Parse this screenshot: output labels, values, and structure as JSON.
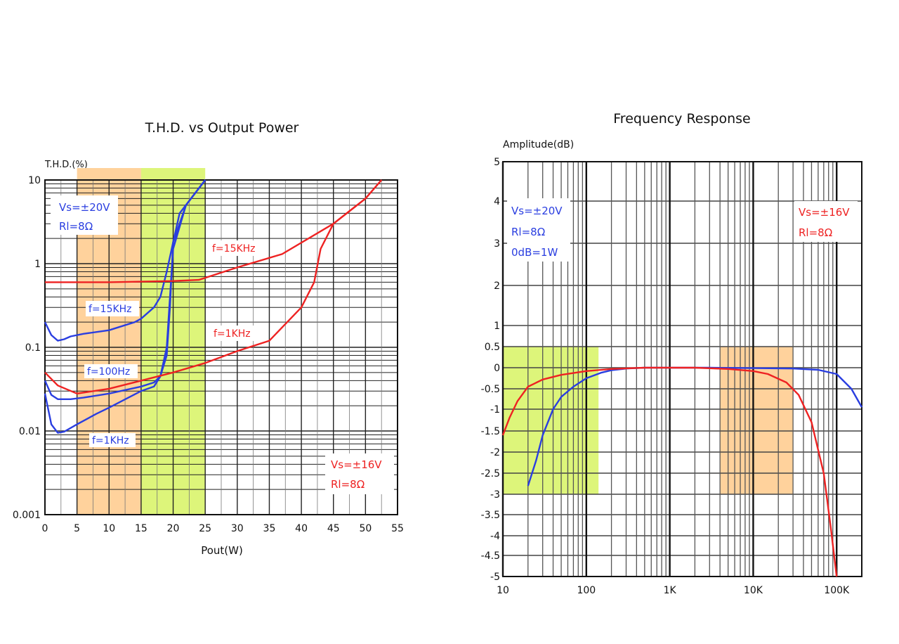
{
  "chart_data": [
    {
      "type": "line",
      "title": "T.H.D. vs Output Power",
      "xlabel": "Pout(W)",
      "ylabel": "T.H.D.(%)",
      "xscale": "linear",
      "yscale": "log",
      "xlim": [
        0,
        55
      ],
      "ylim": [
        0.001,
        10
      ],
      "xticks": [
        0,
        5,
        10,
        15,
        20,
        25,
        30,
        35,
        40,
        45,
        50,
        55
      ],
      "xtick_labels": [
        "0",
        "5",
        "10",
        "15",
        "20",
        "25",
        "30",
        "35",
        "40",
        "45",
        "50",
        "55"
      ],
      "yticks": [
        0.001,
        0.01,
        0.1,
        1,
        10
      ],
      "ytick_labels": [
        "0.001",
        "0.01",
        "0.1",
        "1",
        "10"
      ],
      "grid": true,
      "bands": [
        {
          "x0": 5,
          "x1": 15,
          "color": "#ffd29c"
        },
        {
          "x0": 15,
          "x1": 25,
          "color": "#ddf57a"
        }
      ],
      "series": [
        {
          "name": "f=15KHz",
          "group": "Vs=±20V",
          "color": "#2a3ee0",
          "points": [
            [
              0,
              0.2
            ],
            [
              1,
              0.14
            ],
            [
              2,
              0.12
            ],
            [
              3,
              0.125
            ],
            [
              4,
              0.135
            ],
            [
              6,
              0.145
            ],
            [
              10,
              0.16
            ],
            [
              14,
              0.2
            ],
            [
              15,
              0.22
            ],
            [
              17,
              0.3
            ],
            [
              18,
              0.4
            ],
            [
              19,
              0.8
            ],
            [
              20,
              1.8
            ],
            [
              22,
              5
            ],
            [
              25,
              10
            ]
          ]
        },
        {
          "name": "f=100Hz",
          "group": "Vs=±20V",
          "color": "#2a3ee0",
          "points": [
            [
              0,
              0.04
            ],
            [
              1,
              0.027
            ],
            [
              2,
              0.024
            ],
            [
              4,
              0.024
            ],
            [
              6,
              0.025
            ],
            [
              10,
              0.028
            ],
            [
              15,
              0.034
            ],
            [
              17,
              0.038
            ],
            [
              18,
              0.045
            ],
            [
              19,
              0.08
            ],
            [
              19.5,
              0.3
            ],
            [
              20,
              1.8
            ],
            [
              21,
              4
            ],
            [
              25,
              10
            ]
          ]
        },
        {
          "name": "f=1KHz",
          "group": "Vs=±20V",
          "color": "#2a3ee0",
          "points": [
            [
              0,
              0.028
            ],
            [
              1,
              0.012
            ],
            [
              2,
              0.0095
            ],
            [
              3,
              0.0098
            ],
            [
              5,
              0.012
            ],
            [
              8,
              0.016
            ],
            [
              10,
              0.019
            ],
            [
              15,
              0.03
            ],
            [
              17,
              0.034
            ],
            [
              18,
              0.045
            ],
            [
              19,
              0.1
            ],
            [
              19.5,
              0.4
            ],
            [
              20,
              1.5
            ],
            [
              22,
              5
            ],
            [
              25,
              10
            ]
          ]
        },
        {
          "name": "f=15KHz",
          "group": "Vs=±16V",
          "color": "#ee2222",
          "points": [
            [
              0,
              0.6
            ],
            [
              10,
              0.6
            ],
            [
              20,
              0.62
            ],
            [
              24,
              0.64
            ],
            [
              30,
              0.9
            ],
            [
              37,
              1.3
            ],
            [
              45,
              3
            ],
            [
              50,
              6
            ],
            [
              52.5,
              10
            ]
          ]
        },
        {
          "name": "f=1KHz",
          "group": "Vs=±16V",
          "color": "#ee2222",
          "points": [
            [
              0,
              0.05
            ],
            [
              2,
              0.035
            ],
            [
              5,
              0.028
            ],
            [
              10,
              0.032
            ],
            [
              15,
              0.04
            ],
            [
              20,
              0.05
            ],
            [
              25,
              0.065
            ],
            [
              30,
              0.09
            ],
            [
              35,
              0.12
            ],
            [
              40,
              0.3
            ],
            [
              42,
              0.6
            ],
            [
              43,
              1.5
            ],
            [
              45,
              3
            ],
            [
              50,
              6
            ],
            [
              52.5,
              10
            ]
          ]
        }
      ],
      "annotations": [
        {
          "text": "Vs=±20V",
          "color": "#2a3ee0"
        },
        {
          "text": "Rl=8Ω",
          "color": "#2a3ee0"
        },
        {
          "text": "Vs=±16V",
          "color": "#ee2222"
        },
        {
          "text": "Rl=8Ω",
          "color": "#ee2222"
        }
      ]
    },
    {
      "type": "line",
      "title": "Frequency Response",
      "ylabel": "Amplitude(dB)",
      "xlabel": "",
      "xscale": "log",
      "yscale": "linear",
      "xlim": [
        10,
        200000
      ],
      "ylim": [
        -5,
        5
      ],
      "xticks": [
        10,
        100,
        1000,
        10000,
        100000
      ],
      "xtick_labels": [
        "10",
        "100",
        "1K",
        "10K",
        "100K"
      ],
      "yticks": [
        5,
        4,
        3,
        2,
        1,
        0.5,
        0,
        -0.5,
        -1,
        -1.5,
        -2,
        -2.5,
        -3,
        -3.5,
        -4,
        -4.5,
        -5
      ],
      "ytick_labels": [
        "5",
        "4",
        "3",
        "2",
        "1",
        "0.5",
        "0",
        "-0.5",
        "-1",
        "-1.5",
        "-2",
        "-2.5",
        "-3",
        "-3.5",
        "-4",
        "-4.5",
        "-5"
      ],
      "grid": true,
      "bands": [
        {
          "x0": 10,
          "x1": 140,
          "y0": -3,
          "y1": 0.5,
          "color": "#ddf57a"
        },
        {
          "x0": 4000,
          "x1": 30000,
          "y0": -3,
          "y1": 0.5,
          "color": "#ffd29c"
        }
      ],
      "series": [
        {
          "group": "Vs=±20V",
          "color": "#2a3ee0",
          "points": [
            [
              20,
              -2.8
            ],
            [
              25,
              -2.2
            ],
            [
              30,
              -1.6
            ],
            [
              40,
              -1.0
            ],
            [
              50,
              -0.7
            ],
            [
              70,
              -0.45
            ],
            [
              100,
              -0.25
            ],
            [
              150,
              -0.12
            ],
            [
              200,
              -0.06
            ],
            [
              300,
              -0.02
            ],
            [
              500,
              0
            ],
            [
              1000,
              0
            ],
            [
              3000,
              0
            ],
            [
              10000,
              -0.01
            ],
            [
              30000,
              -0.02
            ],
            [
              60000,
              -0.05
            ],
            [
              100000,
              -0.15
            ],
            [
              150000,
              -0.5
            ],
            [
              200000,
              -0.95
            ]
          ]
        },
        {
          "group": "Vs=±16V",
          "color": "#ee2222",
          "points": [
            [
              10,
              -1.6
            ],
            [
              12,
              -1.2
            ],
            [
              15,
              -0.8
            ],
            [
              20,
              -0.45
            ],
            [
              30,
              -0.28
            ],
            [
              50,
              -0.17
            ],
            [
              100,
              -0.08
            ],
            [
              200,
              -0.03
            ],
            [
              500,
              0
            ],
            [
              2000,
              0
            ],
            [
              5000,
              -0.03
            ],
            [
              10000,
              -0.08
            ],
            [
              15000,
              -0.15
            ],
            [
              25000,
              -0.35
            ],
            [
              35000,
              -0.65
            ],
            [
              50000,
              -1.3
            ],
            [
              70000,
              -2.5
            ],
            [
              85000,
              -3.8
            ],
            [
              100000,
              -5.0
            ]
          ]
        }
      ],
      "annotations": [
        {
          "text": "Vs=±20V",
          "color": "#2a3ee0"
        },
        {
          "text": "Rl=8Ω",
          "color": "#2a3ee0"
        },
        {
          "text": "0dB=1W",
          "color": "#2a3ee0"
        },
        {
          "text": "Vs=±16V",
          "color": "#ee2222"
        },
        {
          "text": "Rl=8Ω",
          "color": "#ee2222"
        }
      ]
    }
  ]
}
